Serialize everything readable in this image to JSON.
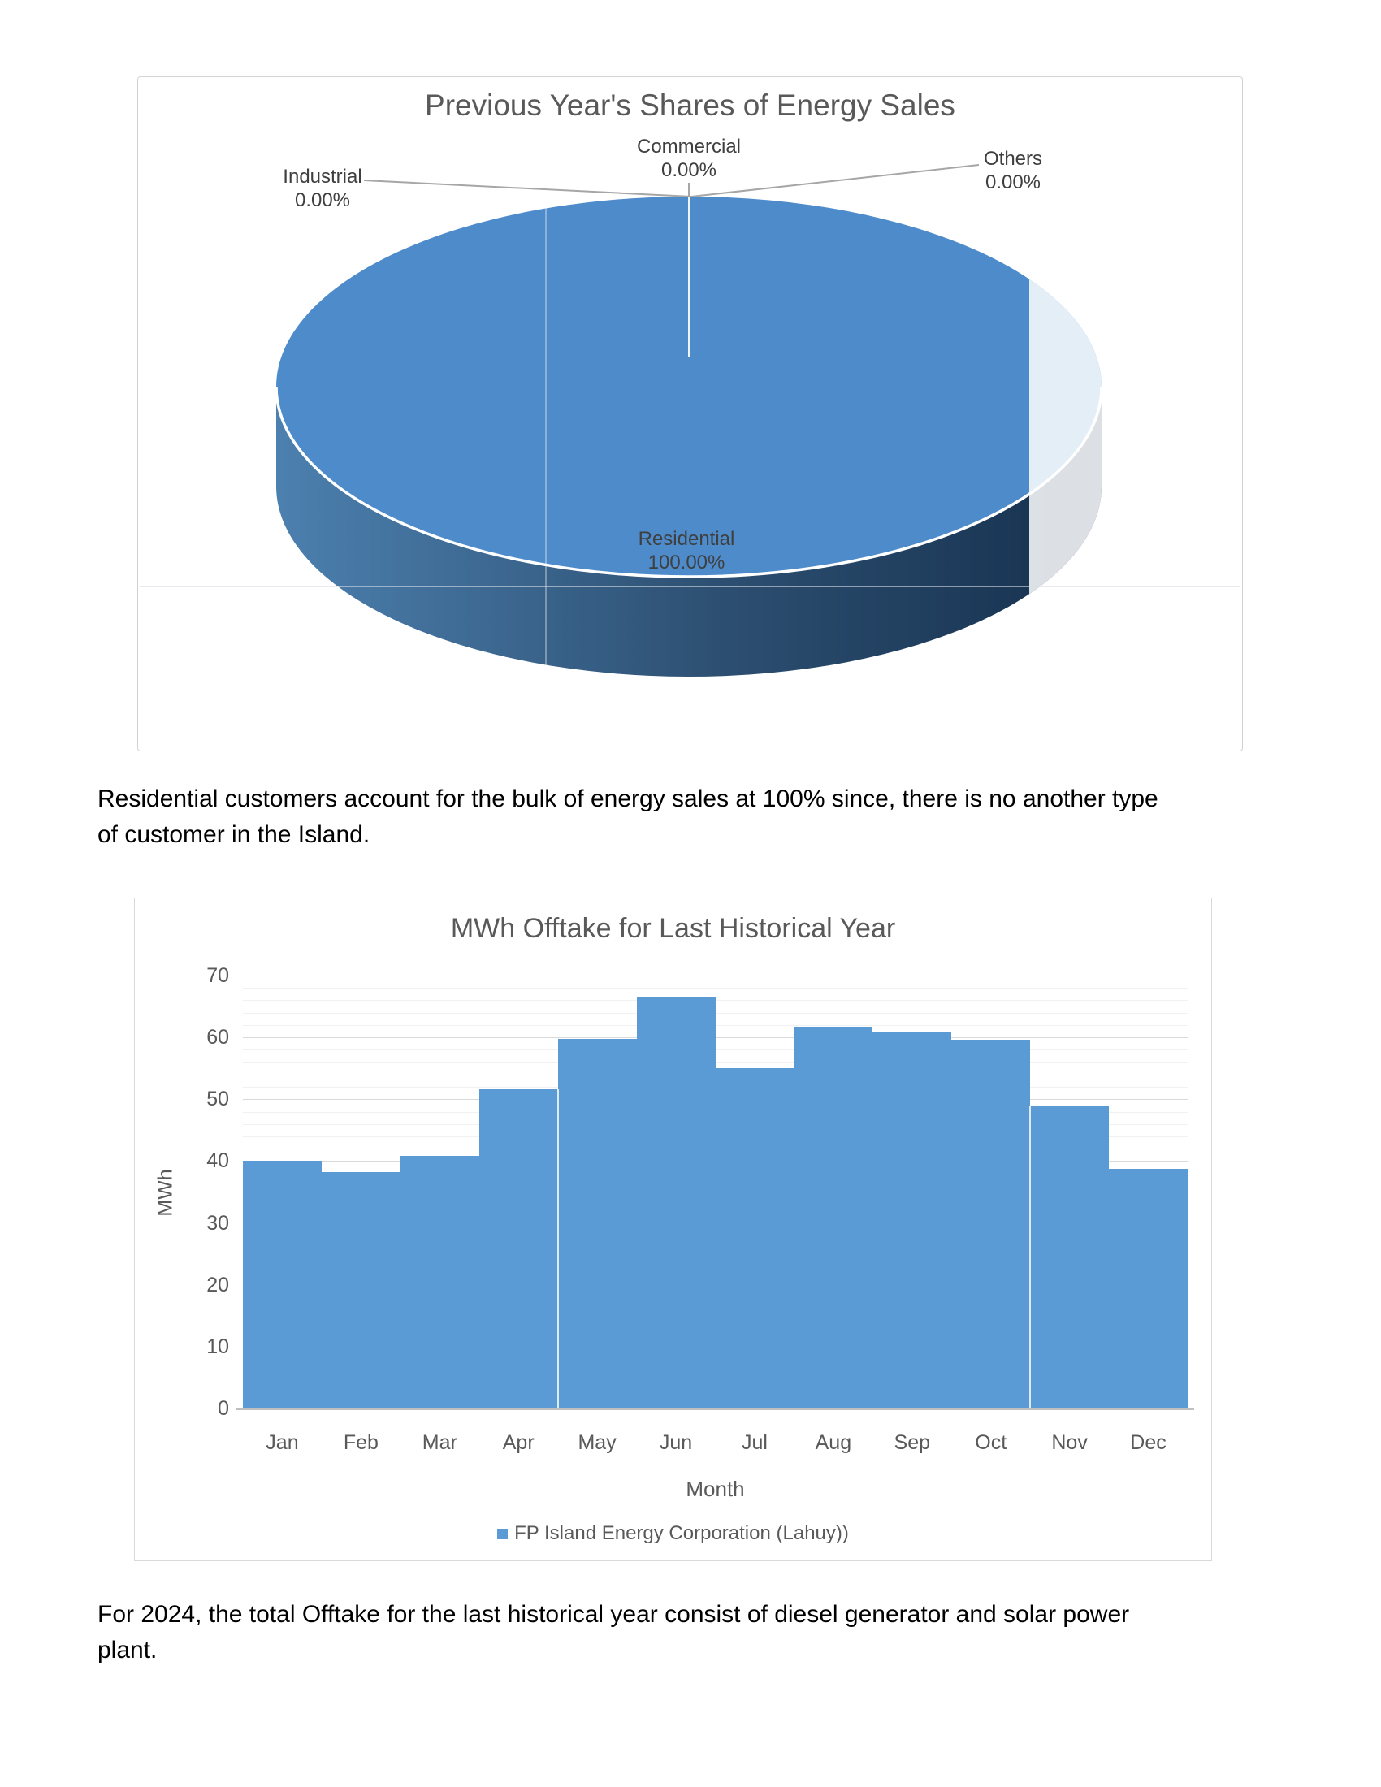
{
  "paragraphs": {
    "pie_caption": "Residential customers account for the bulk of energy sales at 100% since, there is no another type\nof customer in the Island.",
    "bar_caption": "For 2024, the total Offtake for the last historical year consist of diesel generator and solar power\nplant."
  },
  "chart_data": [
    {
      "type": "pie",
      "style": "3d-pie",
      "title": "Previous Year's Shares of Energy Sales",
      "slices": [
        {
          "label": "Residential",
          "value_pct": 100.0
        },
        {
          "label": "Commercial",
          "value_pct": 0.0
        },
        {
          "label": "Industrial",
          "value_pct": 0.0
        },
        {
          "label": "Others",
          "value_pct": 0.0
        }
      ],
      "callouts": {
        "residential": "Residential\n100.00%",
        "commercial": "Commercial\n0.00%",
        "industrial": "Industrial\n0.00%",
        "others": "Others\n0.00%"
      },
      "colors": {
        "top_face": "#4E8BCB",
        "side_left": "#4C80AF",
        "side_mid": "#2C4E70",
        "side_right": "#16304E",
        "faded_overlay": "#FFFFFF",
        "leader_line": "#A6A6A6",
        "title_text": "#595959",
        "label_text": "#3F3F3F"
      },
      "legend_position": "none"
    },
    {
      "type": "bar",
      "title": "MWh Offtake for Last Historical Year",
      "categories": [
        "Jan",
        "Feb",
        "Mar",
        "Apr",
        "May",
        "Jun",
        "Jul",
        "Aug",
        "Sep",
        "Oct",
        "Nov",
        "Dec"
      ],
      "series": [
        {
          "name": "FP Island Energy Corporation (Lahuy))",
          "values": [
            40,
            38.2,
            40.9,
            51.6,
            59.8,
            66.6,
            55,
            61.7,
            61,
            59.6,
            48.9,
            38.7
          ]
        }
      ],
      "xlabel": "Month",
      "ylabel": "MWh",
      "ylim": [
        0,
        70
      ],
      "yticks": [
        0,
        10,
        20,
        30,
        40,
        50,
        60,
        70
      ],
      "minor_grid_step": 2,
      "grid": "on",
      "legend_position": "bottom",
      "colors": {
        "bar_fill": "#5B9BD5",
        "major_grid": "#D9D9D9",
        "minor_grid": "#F1F1F1",
        "axis_line": "#BFBFBF",
        "tick_text": "#595959",
        "title_text": "#595959"
      }
    }
  ]
}
